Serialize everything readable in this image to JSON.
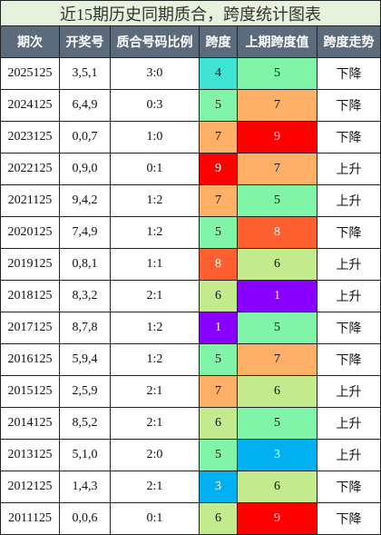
{
  "title": "近15期历史同期质合，跨度统计图表",
  "table": {
    "headers": [
      "期次",
      "开奖号",
      "质合号码比例",
      "跨度",
      "上期跨度值",
      "跨度走势"
    ],
    "rows": [
      [
        "2025125",
        "3,5,1",
        "3:0",
        4,
        5,
        "下降"
      ],
      [
        "2024125",
        "6,4,9",
        "0:3",
        5,
        7,
        "下降"
      ],
      [
        "2023125",
        "0,0,7",
        "1:0",
        7,
        9,
        "下降"
      ],
      [
        "2022125",
        "0,9,0",
        "0:1",
        9,
        7,
        "上升"
      ],
      [
        "2021125",
        "9,4,2",
        "1:2",
        7,
        5,
        "上升"
      ],
      [
        "2020125",
        "7,4,9",
        "1:2",
        5,
        8,
        "下降"
      ],
      [
        "2019125",
        "0,8,1",
        "1:1",
        8,
        6,
        "上升"
      ],
      [
        "2018125",
        "8,3,2",
        "2:1",
        6,
        1,
        "上升"
      ],
      [
        "2017125",
        "8,7,8",
        "1:2",
        1,
        5,
        "下降"
      ],
      [
        "2016125",
        "5,9,4",
        "1:2",
        5,
        7,
        "下降"
      ],
      [
        "2015125",
        "2,5,9",
        "2:1",
        7,
        6,
        "上升"
      ],
      [
        "2014125",
        "8,5,2",
        "2:1",
        6,
        5,
        "上升"
      ],
      [
        "2013125",
        "5,1,0",
        "2:0",
        5,
        3,
        "上升"
      ],
      [
        "2012125",
        "1,4,3",
        "2:1",
        3,
        6,
        "下降"
      ],
      [
        "2011125",
        "0,0,6",
        "0:1",
        6,
        9,
        "下降"
      ]
    ],
    "span_colors": {
      "1": "#8800ff",
      "3": "#00b0f0",
      "4": "#3fe3d3",
      "5": "#80f5a8",
      "6": "#c4ea8e",
      "7": "#ffb066",
      "8": "#ff6030",
      "9": "#ff0000"
    }
  }
}
